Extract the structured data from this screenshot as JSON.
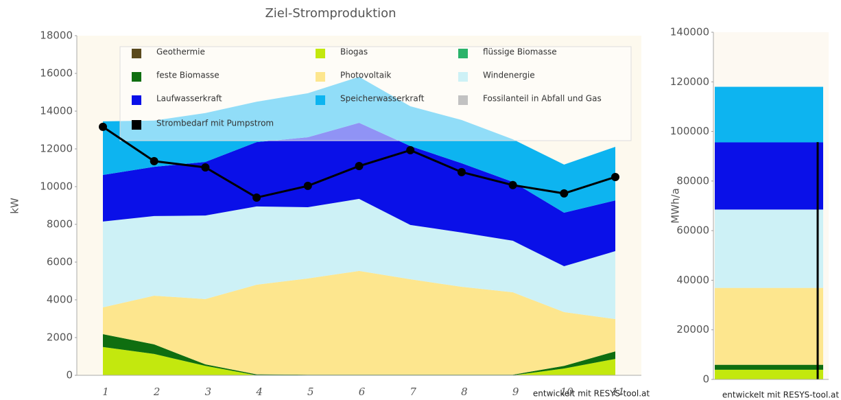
{
  "chart_data": [
    {
      "type": "area",
      "title": "Ziel-Stromproduktion",
      "ylabel": "kW",
      "note": "entwickelt mit RESYS-tool.at",
      "categories": [
        "1",
        "2",
        "3",
        "4",
        "5",
        "6",
        "7",
        "8",
        "9",
        "10",
        "11"
      ],
      "ylim": [
        0,
        18000
      ],
      "yticks": [
        0,
        2000,
        4000,
        6000,
        8000,
        10000,
        12000,
        14000,
        16000,
        18000
      ],
      "series": [
        {
          "name": "Geothermie",
          "color": "#5a4a1e",
          "values": [
            0,
            0,
            0,
            0,
            0,
            0,
            0,
            0,
            0,
            0,
            0
          ]
        },
        {
          "name": "Biogas",
          "color": "#c3e80e",
          "values": [
            1500,
            1130,
            500,
            0,
            0,
            0,
            0,
            0,
            0,
            360,
            870
          ]
        },
        {
          "name": "flüssige Biomasse",
          "color": "#2ab36a",
          "values": [
            0,
            0,
            0,
            0,
            0,
            0,
            0,
            0,
            0,
            0,
            0
          ]
        },
        {
          "name": "feste Biomasse",
          "color": "#0f6e10",
          "values": [
            680,
            510,
            80,
            50,
            30,
            30,
            30,
            30,
            30,
            140,
            400
          ]
        },
        {
          "name": "Photovoltaik",
          "color": "#fde68e",
          "values": [
            1420,
            2580,
            3460,
            4750,
            5100,
            5500,
            5060,
            4660,
            4370,
            2850,
            1710
          ]
        },
        {
          "name": "Windenergie",
          "color": "#cdf1f6",
          "values": [
            4550,
            4220,
            4430,
            4150,
            3780,
            3820,
            2880,
            2880,
            2730,
            2430,
            3600
          ]
        },
        {
          "name": "Laufwasserkraft",
          "color": "#0a10e8",
          "values": [
            2470,
            2610,
            2840,
            3410,
            3710,
            4030,
            4180,
            3670,
            3120,
            2840,
            2690
          ]
        },
        {
          "name": "Speicherwasserkraft",
          "color": "#0db4f0",
          "values": [
            2840,
            2450,
            2590,
            2140,
            2330,
            2440,
            2110,
            2290,
            2260,
            2550,
            2840
          ]
        },
        {
          "name": "Fossilanteil in Abfall und Gas",
          "color": "#c2c2c2",
          "values": [
            0,
            0,
            0,
            0,
            0,
            0,
            0,
            0,
            0,
            0,
            0
          ]
        },
        {
          "name": "Strombedarf mit Pumpstrom",
          "color": "#000000",
          "type": "line",
          "values": [
            13170,
            11350,
            11020,
            9420,
            10040,
            11090,
            11930,
            10770,
            10080,
            9640,
            10510
          ]
        }
      ]
    },
    {
      "type": "bar",
      "ylabel": "MWh/a",
      "note": "entwickelt mit RESYS-tool.at",
      "ylim": [
        0,
        140000
      ],
      "yticks": [
        0,
        20000,
        40000,
        60000,
        80000,
        100000,
        120000,
        140000
      ],
      "series": [
        {
          "color": "#c3e80e",
          "values": [
            3900
          ]
        },
        {
          "color": "#0f6e10",
          "values": [
            2000
          ]
        },
        {
          "color": "#fde68e",
          "values": [
            31000
          ]
        },
        {
          "color": "#cdf1f6",
          "values": [
            31600
          ]
        },
        {
          "color": "#0a10e8",
          "values": [
            27100
          ]
        },
        {
          "color": "#0db4f0",
          "values": [
            22400
          ]
        },
        {
          "color": "#000000",
          "type": "line",
          "values": [
            95700
          ]
        }
      ]
    }
  ]
}
